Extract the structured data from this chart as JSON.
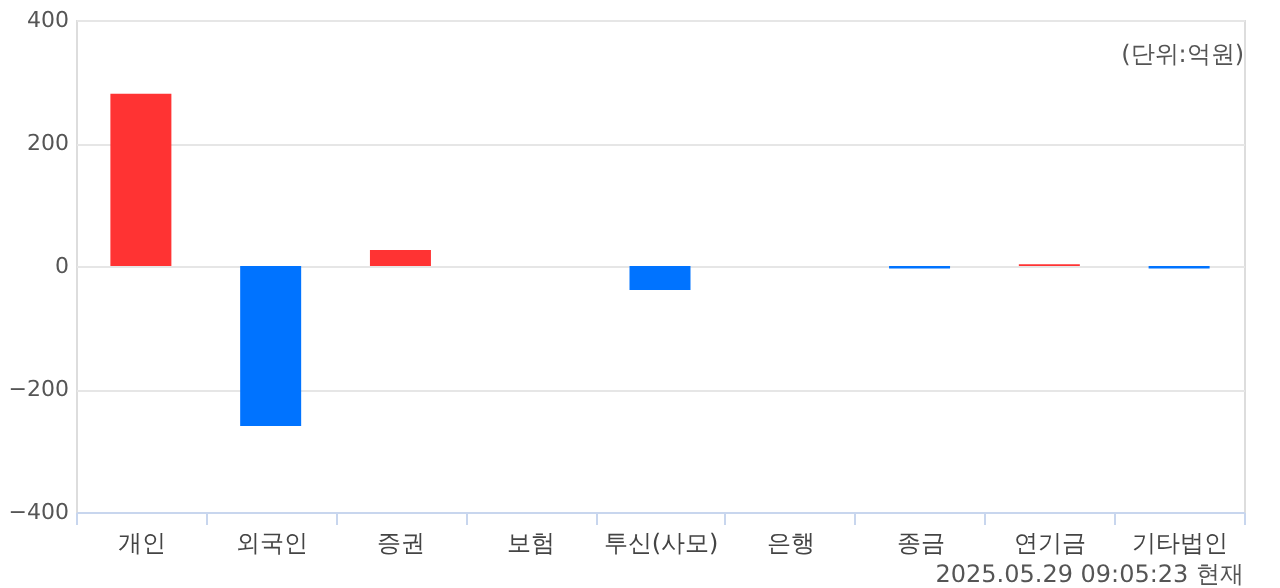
{
  "chart_data": {
    "type": "bar",
    "categories": [
      "개인",
      "외국인",
      "증권",
      "보험",
      "투신(사모)",
      "은행",
      "종금",
      "연기금",
      "기타법인"
    ],
    "values": [
      280,
      -260,
      26,
      0,
      -39,
      0,
      -4,
      3,
      -4
    ],
    "colors": [
      "#ff3333",
      "#0073ff",
      "#ff3333",
      "#ff3333",
      "#0073ff",
      "#ff3333",
      "#0073ff",
      "#ff3333",
      "#0073ff"
    ],
    "ylim": [
      -400,
      400
    ],
    "yticks": [
      -400,
      -200,
      0,
      200,
      400
    ],
    "grid": "y",
    "annotations": [
      "(단위:억원)",
      "2025.05.29 09:05:23 현재"
    ]
  }
}
